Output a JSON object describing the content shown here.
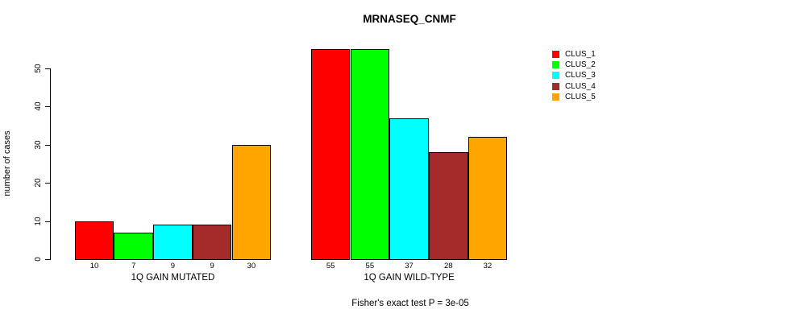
{
  "chart_data": {
    "type": "bar",
    "title": "MRNASEQ_CNMF",
    "ylabel": "number of cases",
    "xlabel": "",
    "categories": [
      "1Q GAIN MUTATED",
      "1Q GAIN WILD-TYPE"
    ],
    "series": [
      {
        "name": "CLUS_1",
        "color": "#ff0000",
        "values": [
          10,
          55
        ]
      },
      {
        "name": "CLUS_2",
        "color": "#00ff00",
        "values": [
          7,
          55
        ]
      },
      {
        "name": "CLUS_3",
        "color": "#00ffff",
        "values": [
          9,
          37
        ]
      },
      {
        "name": "CLUS_4",
        "color": "#a52a2a",
        "values": [
          9,
          28
        ]
      },
      {
        "name": "CLUS_5",
        "color": "#ffa500",
        "values": [
          30,
          32
        ]
      }
    ],
    "bar_value_labels": [
      [
        10,
        7,
        9,
        9,
        30
      ],
      [
        55,
        55,
        37,
        28,
        32
      ]
    ],
    "yticks": [
      0,
      10,
      20,
      30,
      40,
      50
    ],
    "ylim": [
      0,
      55
    ],
    "grid": false,
    "legend_position": "right",
    "annotation": "Fisher's exact test P = 3e-05"
  }
}
